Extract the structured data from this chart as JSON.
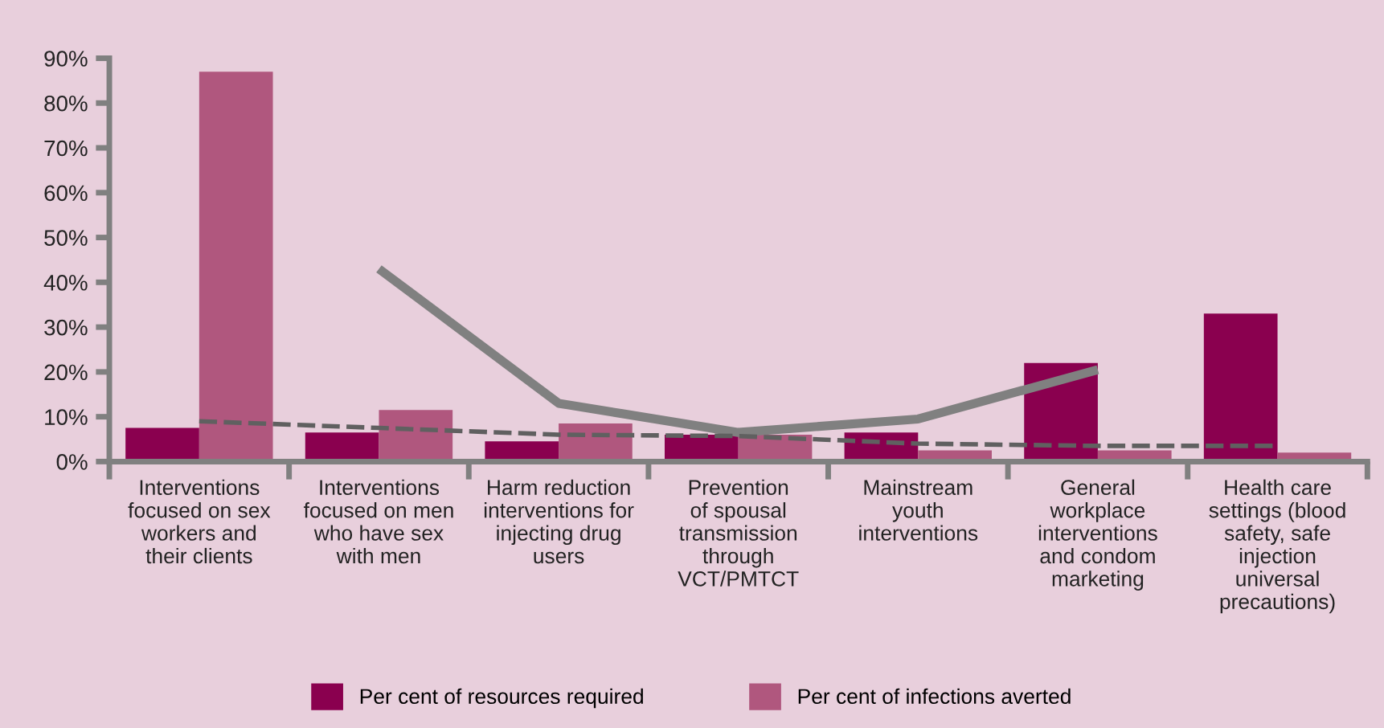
{
  "chart_data": {
    "type": "bar",
    "categories": [
      "Interventions\nfocused on sex\nworkers and\ntheir clients",
      "Interventions\nfocused on men\nwho have sex\nwith men",
      "Harm reduction\ninterventions for\ninjecting drug\nusers",
      "Prevention\nof spousal\ntransmission\nthrough\nVCT/PMTCT",
      "Mainstream\nyouth\ninterventions",
      "General\nworkplace\ninterventions\nand condom\nmarketing",
      "Health care\nsettings (blood\nsafety, safe\ninjection\nuniversal\nprecautions)"
    ],
    "series": [
      {
        "name": "Per cent of resources required",
        "color": "#8a004f",
        "values": [
          7.5,
          6.5,
          4.5,
          6,
          6.5,
          22,
          33
        ]
      },
      {
        "name": "Per cent of infections averted",
        "color": "#b0577e",
        "values": [
          87,
          11.5,
          8.5,
          6,
          2.5,
          2.5,
          2
        ]
      },
      {
        "type": "line",
        "color": "#808080",
        "line_style": "solid",
        "values": [
          null,
          43,
          13,
          6.5,
          9.5,
          20.5,
          null
        ]
      },
      {
        "type": "line",
        "color": "#606060",
        "line_style": "dashed",
        "values": [
          9,
          7.5,
          6,
          5.7,
          4,
          3.5,
          3.5
        ]
      }
    ],
    "ylim": [
      0,
      90
    ],
    "yticks": [
      {
        "value": 0,
        "label": "0%"
      },
      {
        "value": 10,
        "label": "10%"
      },
      {
        "value": 20,
        "label": "20%"
      },
      {
        "value": 30,
        "label": "30%"
      },
      {
        "value": 40,
        "label": "40%"
      },
      {
        "value": 50,
        "label": "50%"
      },
      {
        "value": 60,
        "label": "60%"
      },
      {
        "value": 70,
        "label": "70%"
      },
      {
        "value": 80,
        "label": "80%"
      },
      {
        "value": 90,
        "label": "90%"
      }
    ],
    "grid": false,
    "legend": "bottom"
  }
}
